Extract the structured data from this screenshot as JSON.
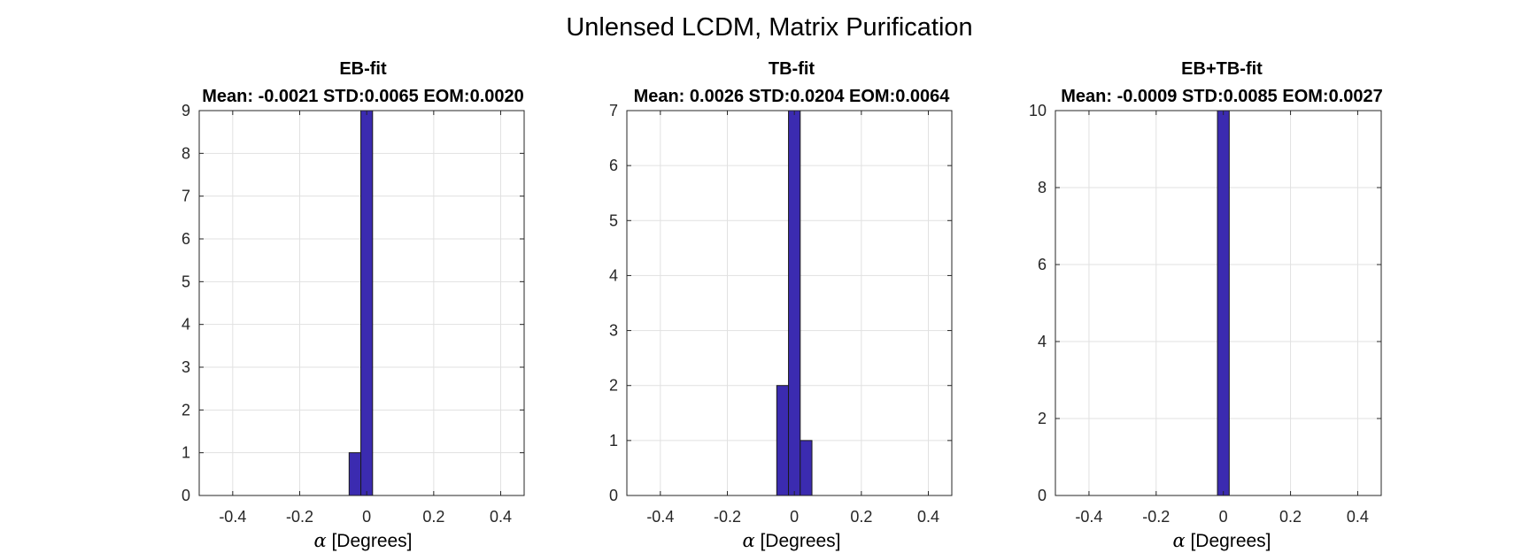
{
  "figure": {
    "suptitle": "Unlensed LCDM, Matrix Purification"
  },
  "chart_data": [
    {
      "type": "bar",
      "title": "EB-fit",
      "subtitle": "Mean: -0.0021 STD:0.0065 EOM:0.0020",
      "xlabel": "α [Degrees]",
      "xlabel_symbol": "α",
      "xlabel_text": " [Degrees]",
      "ylabel": "",
      "xlim": [
        -0.5,
        0.47
      ],
      "ylim": [
        0,
        9
      ],
      "xticks": [
        -0.4,
        -0.2,
        0,
        0.2,
        0.4
      ],
      "xtick_labels": [
        "-0.4",
        "-0.2",
        "0",
        "0.2",
        "0.4"
      ],
      "yticks": [
        0,
        1,
        2,
        3,
        4,
        5,
        6,
        7,
        8,
        9
      ],
      "ytick_labels": [
        "0",
        "1",
        "2",
        "3",
        "4",
        "5",
        "6",
        "7",
        "8",
        "9"
      ],
      "grid": true,
      "bar_color": "#3b2bb0",
      "bins": [
        {
          "x0": -0.0525,
          "x1": -0.0175,
          "count": 1
        },
        {
          "x0": -0.0175,
          "x1": 0.0175,
          "count": 9
        }
      ]
    },
    {
      "type": "bar",
      "title": "TB-fit",
      "subtitle": "Mean: 0.0026 STD:0.0204 EOM:0.0064",
      "xlabel": "α [Degrees]",
      "xlabel_symbol": "α",
      "xlabel_text": " [Degrees]",
      "ylabel": "",
      "xlim": [
        -0.5,
        0.47
      ],
      "ylim": [
        0,
        7
      ],
      "xticks": [
        -0.4,
        -0.2,
        0,
        0.2,
        0.4
      ],
      "xtick_labels": [
        "-0.4",
        "-0.2",
        "0",
        "0.2",
        "0.4"
      ],
      "yticks": [
        0,
        1,
        2,
        3,
        4,
        5,
        6,
        7
      ],
      "ytick_labels": [
        "0",
        "1",
        "2",
        "3",
        "4",
        "5",
        "6",
        "7"
      ],
      "grid": true,
      "bar_color": "#3b2bb0",
      "bins": [
        {
          "x0": -0.0525,
          "x1": -0.0175,
          "count": 2
        },
        {
          "x0": -0.0175,
          "x1": 0.0175,
          "count": 7
        },
        {
          "x0": 0.0175,
          "x1": 0.0525,
          "count": 1
        }
      ]
    },
    {
      "type": "bar",
      "title": "EB+TB-fit",
      "subtitle": "Mean: -0.0009 STD:0.0085 EOM:0.0027",
      "xlabel": "α [Degrees]",
      "xlabel_symbol": "α",
      "xlabel_text": " [Degrees]",
      "ylabel": "",
      "xlim": [
        -0.5,
        0.47
      ],
      "ylim": [
        0,
        10
      ],
      "xticks": [
        -0.4,
        -0.2,
        0,
        0.2,
        0.4
      ],
      "xtick_labels": [
        "-0.4",
        "-0.2",
        "0",
        "0.2",
        "0.4"
      ],
      "yticks": [
        0,
        2,
        4,
        6,
        8,
        10
      ],
      "ytick_labels": [
        "0",
        "2",
        "4",
        "6",
        "8",
        "10"
      ],
      "grid": true,
      "bar_color": "#3b2bb0",
      "bins": [
        {
          "x0": -0.0175,
          "x1": 0.0175,
          "count": 10
        }
      ]
    }
  ]
}
